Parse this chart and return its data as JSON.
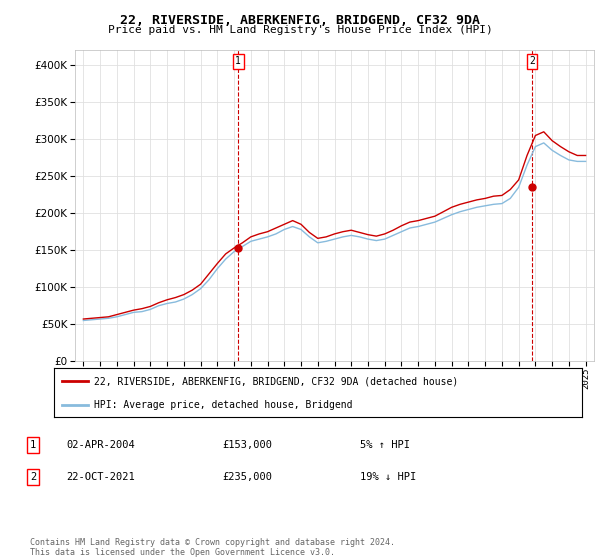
{
  "title": "22, RIVERSIDE, ABERKENFIG, BRIDGEND, CF32 9DA",
  "subtitle": "Price paid vs. HM Land Registry's House Price Index (HPI)",
  "legend_entries": [
    "22, RIVERSIDE, ABERKENFIG, BRIDGEND, CF32 9DA (detached house)",
    "HPI: Average price, detached house, Bridgend"
  ],
  "line1_color": "#cc0000",
  "line2_color": "#88bbdd",
  "annotation1": {
    "num": "1",
    "date": "02-APR-2004",
    "price": "£153,000",
    "hpi": "5% ↑ HPI",
    "x": 2004.25
  },
  "annotation2": {
    "num": "2",
    "date": "22-OCT-2021",
    "price": "£235,000",
    "hpi": "19% ↓ HPI",
    "x": 2021.8
  },
  "vline_color": "#cc0000",
  "footer": "Contains HM Land Registry data © Crown copyright and database right 2024.\nThis data is licensed under the Open Government Licence v3.0.",
  "ylim": [
    0,
    420000
  ],
  "yticks": [
    0,
    50000,
    100000,
    150000,
    200000,
    250000,
    300000,
    350000,
    400000
  ],
  "hpi_data": {
    "years": [
      1995,
      1995.5,
      1996,
      1996.5,
      1997,
      1997.5,
      1998,
      1998.5,
      1999,
      1999.5,
      2000,
      2000.5,
      2001,
      2001.5,
      2002,
      2002.5,
      2003,
      2003.5,
      2004,
      2004.5,
      2005,
      2005.5,
      2006,
      2006.5,
      2007,
      2007.5,
      2008,
      2008.5,
      2009,
      2009.5,
      2010,
      2010.5,
      2011,
      2011.5,
      2012,
      2012.5,
      2013,
      2013.5,
      2014,
      2014.5,
      2015,
      2015.5,
      2016,
      2016.5,
      2017,
      2017.5,
      2018,
      2018.5,
      2019,
      2019.5,
      2020,
      2020.5,
      2021,
      2021.5,
      2022,
      2022.5,
      2023,
      2023.5,
      2024,
      2024.5,
      2025
    ],
    "values": [
      55000,
      56000,
      57000,
      58000,
      60000,
      63000,
      66000,
      67000,
      70000,
      75000,
      78000,
      80000,
      84000,
      90000,
      98000,
      110000,
      125000,
      138000,
      148000,
      155000,
      162000,
      165000,
      168000,
      172000,
      178000,
      182000,
      178000,
      168000,
      160000,
      162000,
      165000,
      168000,
      170000,
      168000,
      165000,
      163000,
      165000,
      170000,
      175000,
      180000,
      182000,
      185000,
      188000,
      193000,
      198000,
      202000,
      205000,
      208000,
      210000,
      212000,
      213000,
      220000,
      235000,
      265000,
      290000,
      295000,
      285000,
      278000,
      272000,
      270000,
      270000
    ]
  },
  "paid_data": {
    "years": [
      1995,
      1995.5,
      1996,
      1996.5,
      1997,
      1997.5,
      1998,
      1998.5,
      1999,
      1999.5,
      2000,
      2000.5,
      2001,
      2001.5,
      2002,
      2002.5,
      2003,
      2003.5,
      2004,
      2004.5,
      2005,
      2005.5,
      2006,
      2006.5,
      2007,
      2007.5,
      2008,
      2008.5,
      2009,
      2009.5,
      2010,
      2010.5,
      2011,
      2011.5,
      2012,
      2012.5,
      2013,
      2013.5,
      2014,
      2014.5,
      2015,
      2015.5,
      2016,
      2016.5,
      2017,
      2017.5,
      2018,
      2018.5,
      2019,
      2019.5,
      2020,
      2020.5,
      2021,
      2021.5,
      2022,
      2022.5,
      2023,
      2023.5,
      2024,
      2024.5,
      2025
    ],
    "values": [
      57000,
      58000,
      59000,
      60000,
      63000,
      66000,
      69000,
      71000,
      74000,
      79000,
      83000,
      86000,
      90000,
      96000,
      104000,
      118000,
      132000,
      145000,
      153000,
      160000,
      168000,
      172000,
      175000,
      180000,
      185000,
      190000,
      185000,
      174000,
      166000,
      168000,
      172000,
      175000,
      177000,
      174000,
      171000,
      169000,
      172000,
      177000,
      183000,
      188000,
      190000,
      193000,
      196000,
      202000,
      208000,
      212000,
      215000,
      218000,
      220000,
      223000,
      224000,
      232000,
      245000,
      278000,
      305000,
      310000,
      298000,
      290000,
      283000,
      278000,
      278000
    ]
  },
  "background_color": "#ffffff",
  "grid_color": "#e0e0e0",
  "xlim": [
    1994.5,
    2025.5
  ],
  "xtick_years": [
    1995,
    1996,
    1997,
    1998,
    1999,
    2000,
    2001,
    2002,
    2003,
    2004,
    2005,
    2006,
    2007,
    2008,
    2009,
    2010,
    2011,
    2012,
    2013,
    2014,
    2015,
    2016,
    2017,
    2018,
    2019,
    2020,
    2021,
    2022,
    2023,
    2024,
    2025
  ],
  "ann1_y": 153000,
  "ann2_y": 235000
}
